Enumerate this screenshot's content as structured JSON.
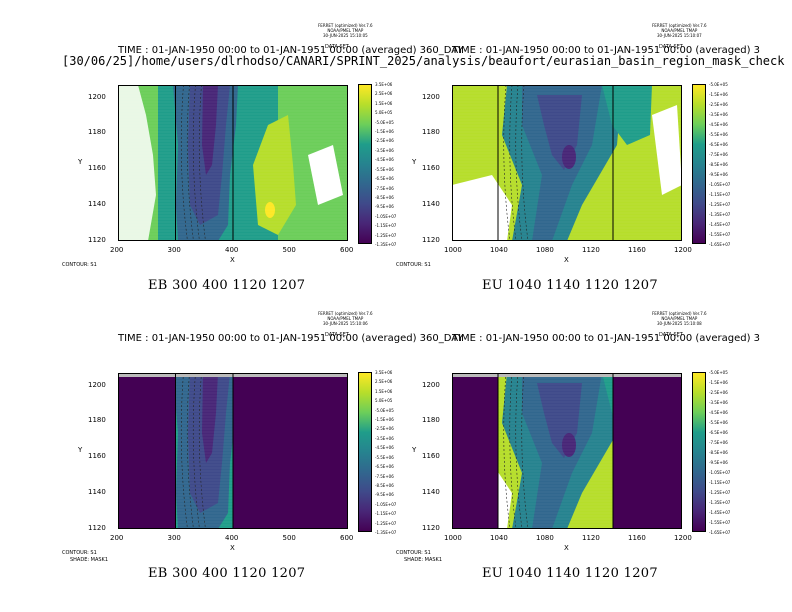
{
  "path_text": "[30/06/25]/home/users/dlrhodso/CANARI/SPRINT_2025/analysis/beaufort/eurasian_basin_region_mask_check",
  "palette": [
    "#440154",
    "#482677",
    "#3f4a8a",
    "#31678e",
    "#26838f",
    "#1f9d8a",
    "#6cce5a",
    "#b6de2b",
    "#fee825"
  ],
  "panels": [
    {
      "id": "eb-top",
      "title": "TIME : 01-JAN-1950 00:00 to 01-JAN-1951 00:00 (averaged) 360_DAY",
      "ferret": [
        "FERRET (optimized) Ver.7.6",
        "NOAA/PMEL TMAP",
        "30-JUN-2025 15:10:05"
      ],
      "ferret_overlap": "DATA SET",
      "caption": "EB 300 400 1120 1207",
      "xlabel": "X",
      "ylabel": "Y",
      "xticks": [
        "200",
        "300",
        "400",
        "500",
        "600"
      ],
      "yticks": [
        "1200",
        "1180",
        "1160",
        "1140",
        "1120"
      ],
      "xlim": [
        200,
        600
      ],
      "ylim": [
        1120,
        1207
      ],
      "notes": [
        "CONTOUR: S1"
      ],
      "colorbar": [
        "3.5E+06",
        "2.5E+06",
        "1.5E+06",
        "5.0E+05",
        "-5.0E+05",
        "-1.5E+06",
        "-2.5E+06",
        "-3.5E+06",
        "-4.5E+06",
        "-5.5E+06",
        "-6.5E+06",
        "-7.5E+06",
        "-8.5E+06",
        "-9.5E+06",
        "-1.05E+07",
        "-1.15E+07",
        "-1.25E+07",
        "-1.35E+07"
      ],
      "box": [
        300,
        400,
        1120,
        1207
      ],
      "masked": false
    },
    {
      "id": "eu-top",
      "title": "TIME : 01-JAN-1950 00:00 to 01-JAN-1951 00:00 (averaged) 3",
      "ferret": [
        "FERRET (optimized) Ver.7.6",
        "NOAA/PMEL TMAP",
        "30-JUN-2025 15:10:07"
      ],
      "ferret_overlap": "DATA SET",
      "caption": "EU 1040 1140 1120 1207",
      "xlabel": "X",
      "ylabel": "Y",
      "xticks": [
        "1000",
        "1040",
        "1080",
        "1120",
        "1160",
        "1200"
      ],
      "yticks": [
        "1200",
        "1180",
        "1160",
        "1140",
        "1120"
      ],
      "xlim": [
        1000,
        1200
      ],
      "ylim": [
        1120,
        1207
      ],
      "notes": [
        "CONTOUR: S1"
      ],
      "colorbar": [
        "-5.0E+05",
        "-1.5E+06",
        "-2.5E+06",
        "-3.5E+06",
        "-4.5E+06",
        "-5.5E+06",
        "-6.5E+06",
        "-7.5E+06",
        "-8.5E+06",
        "-9.5E+06",
        "-1.05E+07",
        "-1.15E+07",
        "-1.25E+07",
        "-1.35E+07",
        "-1.45E+07",
        "-1.55E+07",
        "-1.65E+07"
      ],
      "box": [
        1040,
        1140,
        1120,
        1207
      ],
      "masked": false
    },
    {
      "id": "eb-bottom",
      "title": "TIME : 01-JAN-1950 00:00 to 01-JAN-1951 00:00 (averaged) 360_DAY",
      "ferret": [
        "FERRET (optimized) Ver.7.6",
        "NOAA/PMEL TMAP",
        "30-JUN-2025 15:10:06"
      ],
      "ferret_overlap": "DATA SET",
      "caption": "EB 300 400 1120 1207",
      "xlabel": "X",
      "ylabel": "Y",
      "xticks": [
        "200",
        "300",
        "400",
        "500",
        "600"
      ],
      "yticks": [
        "1200",
        "1180",
        "1160",
        "1140",
        "1120"
      ],
      "xlim": [
        200,
        600
      ],
      "ylim": [
        1120,
        1207
      ],
      "notes": [
        "CONTOUR: S1",
        "SHADE: MASK1"
      ],
      "colorbar": [
        "3.5E+06",
        "2.5E+06",
        "1.5E+06",
        "5.0E+05",
        "-5.0E+05",
        "-1.5E+06",
        "-2.5E+06",
        "-3.5E+06",
        "-4.5E+06",
        "-5.5E+06",
        "-6.5E+06",
        "-7.5E+06",
        "-8.5E+06",
        "-9.5E+06",
        "-1.05E+07",
        "-1.15E+07",
        "-1.25E+07",
        "-1.35E+07"
      ],
      "box": [
        300,
        400,
        1120,
        1207
      ],
      "masked": true
    },
    {
      "id": "eu-bottom",
      "title": "TIME : 01-JAN-1950 00:00 to 01-JAN-1951 00:00 (averaged) 3",
      "ferret": [
        "FERRET (optimized) Ver.7.6",
        "NOAA/PMEL TMAP",
        "30-JUN-2025 15:10:08"
      ],
      "ferret_overlap": "DATA SET",
      "caption": "EU 1040 1140 1120 1207",
      "xlabel": "X",
      "ylabel": "Y",
      "xticks": [
        "1000",
        "1040",
        "1080",
        "1120",
        "1160",
        "1200"
      ],
      "yticks": [
        "1200",
        "1180",
        "1160",
        "1140",
        "1120"
      ],
      "xlim": [
        1000,
        1200
      ],
      "ylim": [
        1120,
        1207
      ],
      "notes": [
        "CONTOUR: S1",
        "SHADE: MASK1"
      ],
      "colorbar": [
        "-5.0E+05",
        "-1.5E+06",
        "-2.5E+06",
        "-3.5E+06",
        "-4.5E+06",
        "-5.5E+06",
        "-6.5E+06",
        "-7.5E+06",
        "-8.5E+06",
        "-9.5E+06",
        "-1.05E+07",
        "-1.15E+07",
        "-1.25E+07",
        "-1.35E+07",
        "-1.45E+07",
        "-1.55E+07",
        "-1.65E+07"
      ],
      "box": [
        1040,
        1140,
        1120,
        1207
      ],
      "masked": true
    }
  ],
  "chart_data": [
    {
      "type": "heatmap",
      "title": "TIME : 01-JAN-1950 00:00 to 01-JAN-1951 00:00 (averaged) 360_DAY",
      "xlabel": "X",
      "ylabel": "Y",
      "xlim": [
        200,
        600
      ],
      "ylim": [
        1120,
        1207
      ],
      "region_box": [
        300,
        400,
        1120,
        1207
      ],
      "grid": false
    },
    {
      "type": "heatmap",
      "title": "TIME : 01-JAN-1950 00:00 to 01-JAN-1951 00:00 (averaged) 3",
      "xlabel": "X",
      "ylabel": "Y",
      "xlim": [
        1000,
        1200
      ],
      "ylim": [
        1120,
        1207
      ],
      "region_box": [
        1040,
        1140,
        1120,
        1207
      ],
      "grid": false
    },
    {
      "type": "heatmap",
      "title": "TIME : 01-JAN-1950 00:00 to 01-JAN-1951 00:00 (averaged) 360_DAY",
      "xlabel": "X",
      "ylabel": "Y",
      "xlim": [
        200,
        600
      ],
      "ylim": [
        1120,
        1207
      ],
      "region_box": [
        300,
        400,
        1120,
        1207
      ],
      "grid": false
    },
    {
      "type": "heatmap",
      "title": "TIME : 01-JAN-1950 00:00 to 01-JAN-1951 00:00 (averaged) 3",
      "xlabel": "X",
      "ylabel": "Y",
      "xlim": [
        1000,
        1200
      ],
      "ylim": [
        1120,
        1207
      ],
      "region_box": [
        1040,
        1140,
        1120,
        1207
      ],
      "grid": false
    }
  ]
}
